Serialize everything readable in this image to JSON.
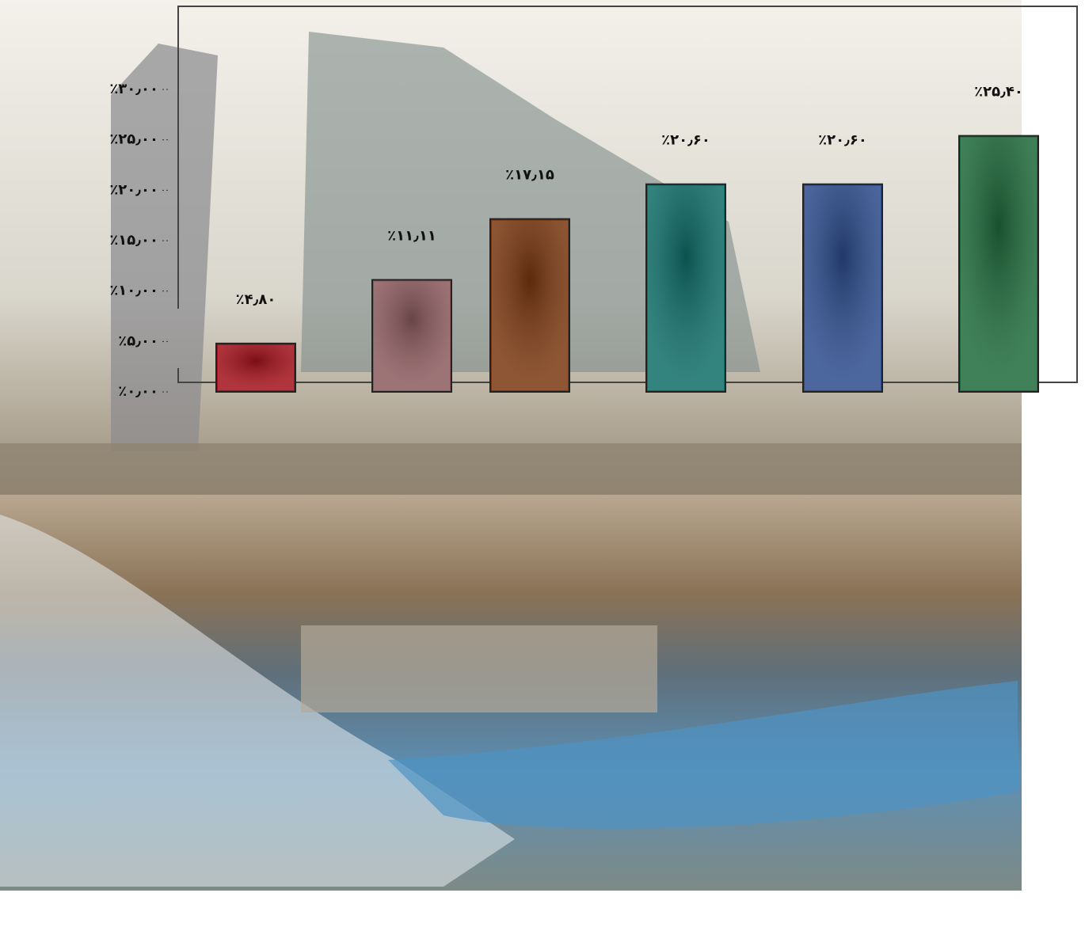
{
  "chart_data": {
    "type": "bar",
    "categories": [
      null,
      null,
      null,
      null,
      null,
      null
    ],
    "values": [
      4.8,
      11.11,
      17.15,
      20.6,
      20.6,
      25.4
    ],
    "value_labels": [
      "٪۴٫۸۰",
      "٪۱۱٫۱۱",
      "٪۱۷٫۱۵",
      "٪۲۰٫۶۰",
      "٪۲۰٫۶۰",
      "٪۲۵٫۴۰"
    ],
    "colors": [
      "#a3111b",
      "#8c5b5e",
      "#7a3810",
      "#0f6d68",
      "#2c4c8c",
      "#1f6b3c"
    ],
    "ylim": [
      0,
      30
    ],
    "yticks": [
      {
        "value": 0,
        "label": "٪۰٫۰۰"
      },
      {
        "value": 5,
        "label": "٪۵٫۰۰"
      },
      {
        "value": 10,
        "label": "٪۱۰٫۰۰"
      },
      {
        "value": 15,
        "label": "٪۱۵٫۰۰"
      },
      {
        "value": 20,
        "label": "٪۲۰٫۰۰"
      },
      {
        "value": 25,
        "label": "٪۲۵٫۰۰"
      },
      {
        "value": 30,
        "label": "٪۳۰٫۰۰"
      }
    ]
  }
}
